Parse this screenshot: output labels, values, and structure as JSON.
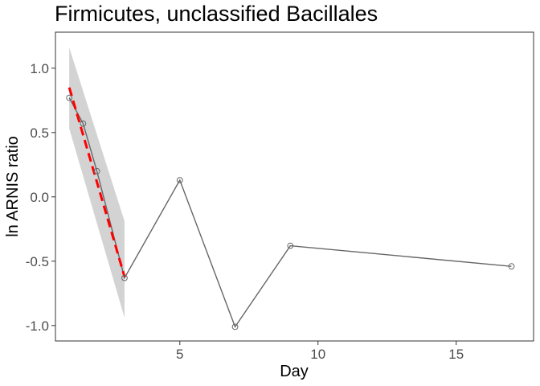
{
  "chart_data": {
    "type": "line",
    "title": "Firmicutes, unclassified Bacillales",
    "xlabel": "Day",
    "ylabel": "ln ARNIS ratio",
    "xlim": [
      0.5,
      17.8
    ],
    "ylim": [
      -1.12,
      1.28
    ],
    "xticks": [
      5,
      10,
      15
    ],
    "yticks": [
      1.0,
      0.5,
      0.0,
      -0.5,
      -1.0
    ],
    "ytick_labels": [
      "1.0",
      "0.5",
      "0.0",
      "-0.5",
      "-1.0"
    ],
    "grid": false,
    "series": [
      {
        "style": "line with open circles",
        "color": "#666666",
        "x": [
          1,
          1.5,
          2,
          3,
          5,
          7,
          9,
          17
        ],
        "y": [
          0.77,
          0.57,
          0.2,
          -0.63,
          0.13,
          -1.01,
          -0.38,
          -0.54
        ]
      }
    ],
    "fit": {
      "style": "dashed regression line",
      "color": "#ff0000",
      "x": [
        1,
        3
      ],
      "y": [
        0.85,
        -0.62
      ],
      "ribbon_color": "#d3d3d3",
      "ribbon_upper": [
        1.16,
        -0.19
      ],
      "ribbon_lower": [
        0.53,
        -0.94
      ]
    }
  }
}
